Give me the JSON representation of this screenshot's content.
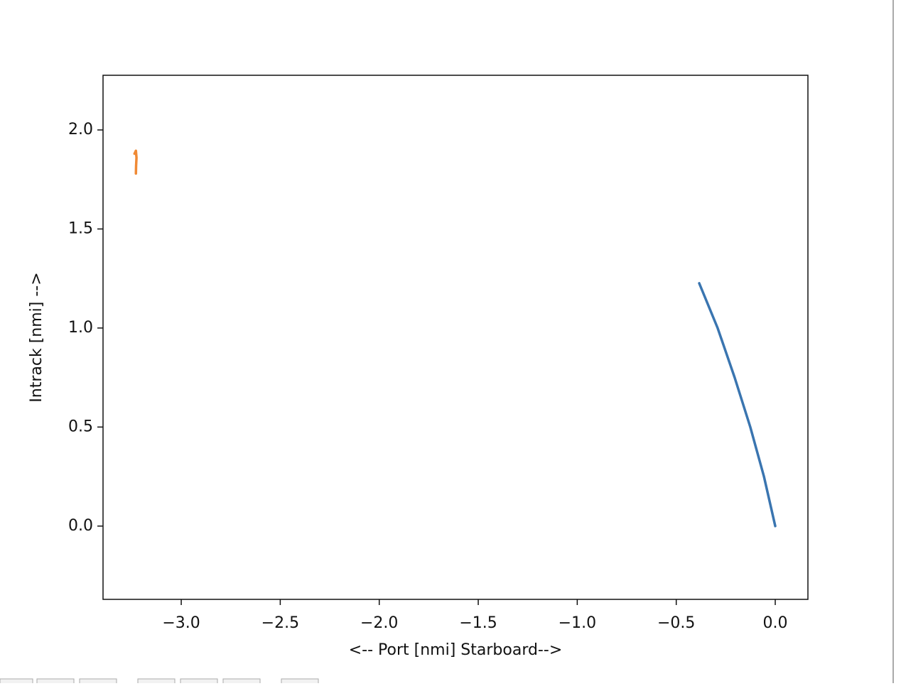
{
  "chart_data": {
    "type": "line",
    "xlabel": "<-- Port [nmi] Starboard-->",
    "ylabel": "Intrack [nmi] -->",
    "xlim": [
      -3.395,
      0.165
    ],
    "ylim": [
      -0.37,
      2.276
    ],
    "xticks": [
      {
        "value": -3.0,
        "label": "−3.0"
      },
      {
        "value": -2.5,
        "label": "−2.5"
      },
      {
        "value": -2.0,
        "label": "−2.0"
      },
      {
        "value": -1.5,
        "label": "−1.5"
      },
      {
        "value": -1.0,
        "label": "−1.0"
      },
      {
        "value": -0.5,
        "label": "−0.5"
      },
      {
        "value": 0.0,
        "label": "0.0"
      }
    ],
    "yticks": [
      {
        "value": 0.0,
        "label": "0.0"
      },
      {
        "value": 0.5,
        "label": "0.5"
      },
      {
        "value": 1.0,
        "label": "1.0"
      },
      {
        "value": 1.5,
        "label": "1.5"
      },
      {
        "value": 2.0,
        "label": "2.0"
      }
    ],
    "grid": false,
    "series": [
      {
        "color": "#3a75b0",
        "x": [
          0.0,
          -0.057,
          -0.126,
          -0.205,
          -0.291,
          -0.384
        ],
        "values": [
          0.0,
          0.25,
          0.5,
          0.75,
          1.0,
          1.226
        ]
      },
      {
        "color": "#f08a35",
        "x": [
          -3.236,
          -3.229,
          -3.226,
          -3.228,
          -3.229
        ],
        "values": [
          1.88,
          1.895,
          1.86,
          1.82,
          1.78
        ]
      }
    ]
  }
}
